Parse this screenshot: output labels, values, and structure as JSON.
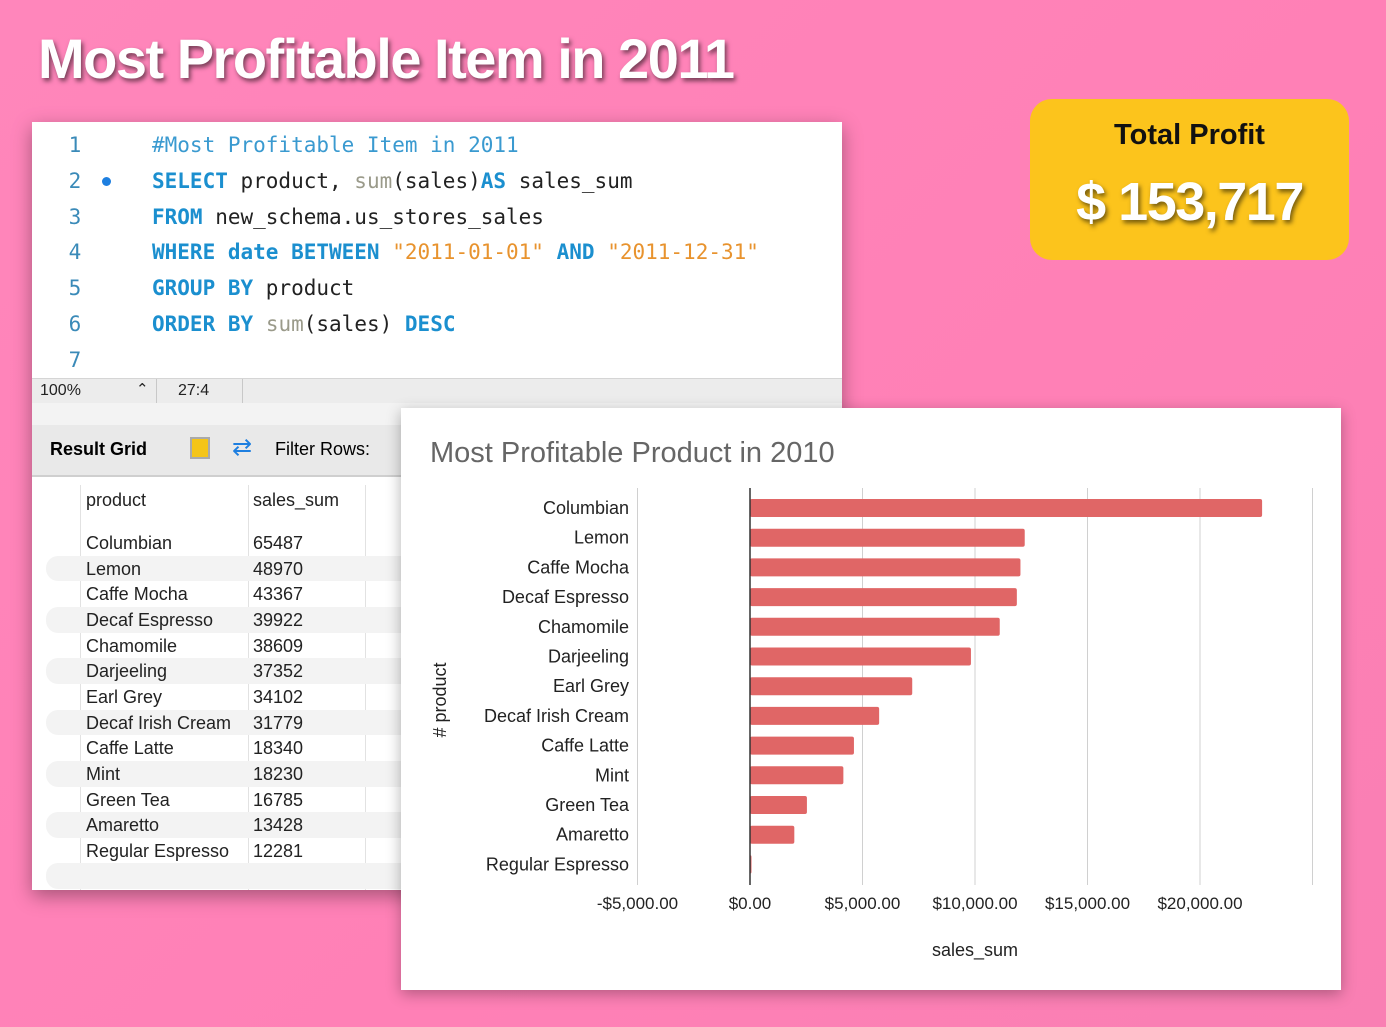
{
  "page_title": "Most Profitable Item in 2011",
  "editor": {
    "lines": [
      {
        "n": "1",
        "parts": [
          {
            "t": "#Most Profitable Item in 2011",
            "c": "cm"
          }
        ]
      },
      {
        "n": "2",
        "parts": [
          {
            "t": "SELECT",
            "c": "kw"
          },
          {
            "t": " product, "
          },
          {
            "t": "sum",
            "c": "fn"
          },
          {
            "t": "(sales)"
          },
          {
            "t": "AS",
            "c": "kw"
          },
          {
            "t": " sales_sum"
          }
        ]
      },
      {
        "n": "3",
        "parts": [
          {
            "t": "FROM",
            "c": "kw"
          },
          {
            "t": " new_schema.us_stores_sales"
          }
        ]
      },
      {
        "n": "4",
        "parts": [
          {
            "t": "WHERE date BETWEEN",
            "c": "kw"
          },
          {
            "t": " "
          },
          {
            "t": "\"2011-01-01\"",
            "c": "str"
          },
          {
            "t": " "
          },
          {
            "t": "AND",
            "c": "kw"
          },
          {
            "t": " "
          },
          {
            "t": "\"2011-12-31\"",
            "c": "str"
          }
        ]
      },
      {
        "n": "5",
        "parts": [
          {
            "t": "GROUP BY",
            "c": "kw"
          },
          {
            "t": " product"
          }
        ]
      },
      {
        "n": "6",
        "parts": [
          {
            "t": "ORDER BY",
            "c": "kw"
          },
          {
            "t": " "
          },
          {
            "t": "sum",
            "c": "fn"
          },
          {
            "t": "(sales) "
          },
          {
            "t": "DESC",
            "c": "kw"
          }
        ]
      },
      {
        "n": "7",
        "parts": []
      }
    ],
    "zoom": "100%",
    "cursor": "27:4"
  },
  "result": {
    "label": "Result Grid",
    "filter_label": "Filter Rows:",
    "columns": [
      "product",
      "sales_sum"
    ],
    "rows": [
      [
        "Columbian",
        "65487"
      ],
      [
        "Lemon",
        "48970"
      ],
      [
        "Caffe Mocha",
        "43367"
      ],
      [
        "Decaf Espresso",
        "39922"
      ],
      [
        "Chamomile",
        "38609"
      ],
      [
        "Darjeeling",
        "37352"
      ],
      [
        "Earl Grey",
        "34102"
      ],
      [
        "Decaf Irish Cream",
        "31779"
      ],
      [
        "Caffe Latte",
        "18340"
      ],
      [
        "Mint",
        "18230"
      ],
      [
        "Green Tea",
        "16785"
      ],
      [
        "Amaretto",
        "13428"
      ],
      [
        "Regular Espresso",
        "12281"
      ]
    ]
  },
  "card": {
    "label": "Total Profit",
    "value": "$ 153,717"
  },
  "chart_data": {
    "type": "bar",
    "orientation": "horizontal",
    "title": "Most Profitable Product in 2010",
    "xlabel": "sales_sum",
    "ylabel": "# product",
    "categories": [
      "Columbian",
      "Lemon",
      "Caffe Mocha",
      "Decaf Espresso",
      "Chamomile",
      "Darjeeling",
      "Earl Grey",
      "Decaf Irish Cream",
      "Caffe Latte",
      "Mint",
      "Green Tea",
      "Amaretto",
      "Regular Espresso"
    ],
    "values": [
      22760,
      12210,
      12020,
      11860,
      11100,
      9820,
      7210,
      5740,
      4620,
      4150,
      2530,
      1970,
      0
    ],
    "xlim": [
      -5000,
      25000
    ],
    "xticks": [
      -5000,
      0,
      5000,
      10000,
      15000,
      20000
    ],
    "xtick_labels": [
      "-$5,000.00",
      "$0.00",
      "$5,000.00",
      "$10,000.00",
      "$15,000.00",
      "$20,000.00"
    ],
    "grid": true,
    "bar_color": "#e06666"
  }
}
